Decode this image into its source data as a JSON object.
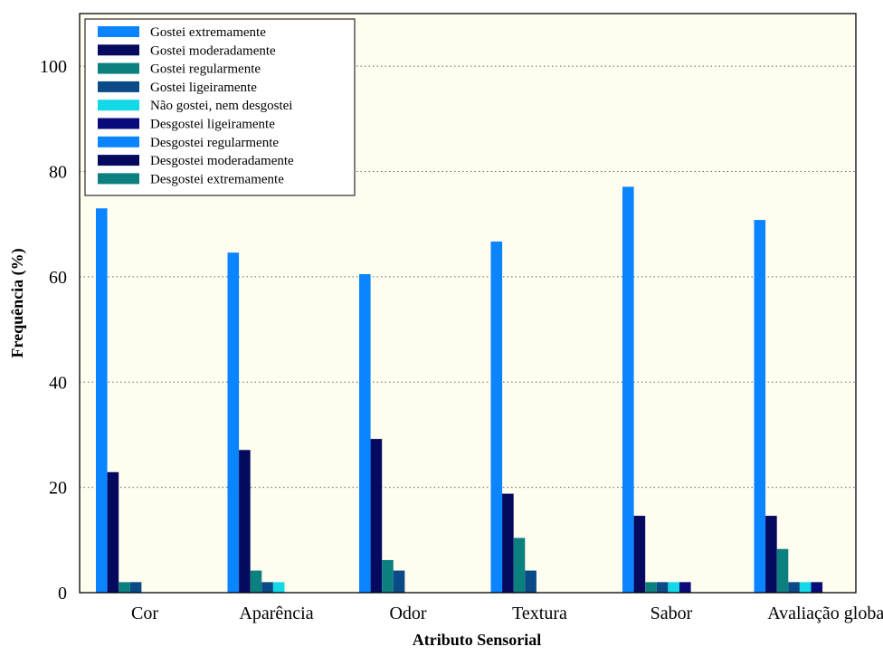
{
  "chart_data": {
    "type": "bar",
    "xlabel": "Atributo Sensorial",
    "ylabel": "Frequência (%)",
    "ylim": [
      0,
      110
    ],
    "yticks": [
      0,
      20,
      40,
      60,
      80,
      100
    ],
    "grid": "horizontal dotted",
    "legend_position": "top-left",
    "categories": [
      "Cor",
      "Aparência",
      "Odor",
      "Textura",
      "Sabor",
      "Avaliação global"
    ],
    "series": [
      {
        "name": "Gostei extremamente",
        "color": "#0a84ff",
        "values": [
          73,
          64.6,
          60.5,
          66.7,
          77.1,
          70.8
        ]
      },
      {
        "name": "Gostei moderadamente",
        "color": "#050a5e",
        "values": [
          22.9,
          27.1,
          29.2,
          18.8,
          14.6,
          14.6
        ]
      },
      {
        "name": "Gostei regularmente",
        "color": "#0c7f7f",
        "values": [
          2,
          4.2,
          6.2,
          10.4,
          2,
          8.3
        ]
      },
      {
        "name": "Gostei ligeiramente",
        "color": "#0a4a86",
        "values": [
          2,
          2,
          4.2,
          4.2,
          2,
          2
        ]
      },
      {
        "name": "Não gostei, nem desgostei",
        "color": "#12d8e8",
        "values": [
          0,
          2,
          0,
          0,
          2,
          2
        ]
      },
      {
        "name": "Desgostei ligeiramente",
        "color": "#0a0a7a",
        "values": [
          0,
          0,
          0,
          0,
          2,
          2
        ]
      },
      {
        "name": "Desgostei regularmente",
        "color": "#0a84ff",
        "values": [
          0,
          0,
          0,
          0,
          0,
          0
        ]
      },
      {
        "name": "Desgostei moderadamente",
        "color": "#050a5e",
        "values": [
          0,
          0,
          0,
          0,
          0,
          0
        ]
      },
      {
        "name": "Desgostei extremamente",
        "color": "#0c7f7f",
        "values": [
          0,
          0,
          0,
          0,
          0,
          0
        ]
      }
    ]
  }
}
